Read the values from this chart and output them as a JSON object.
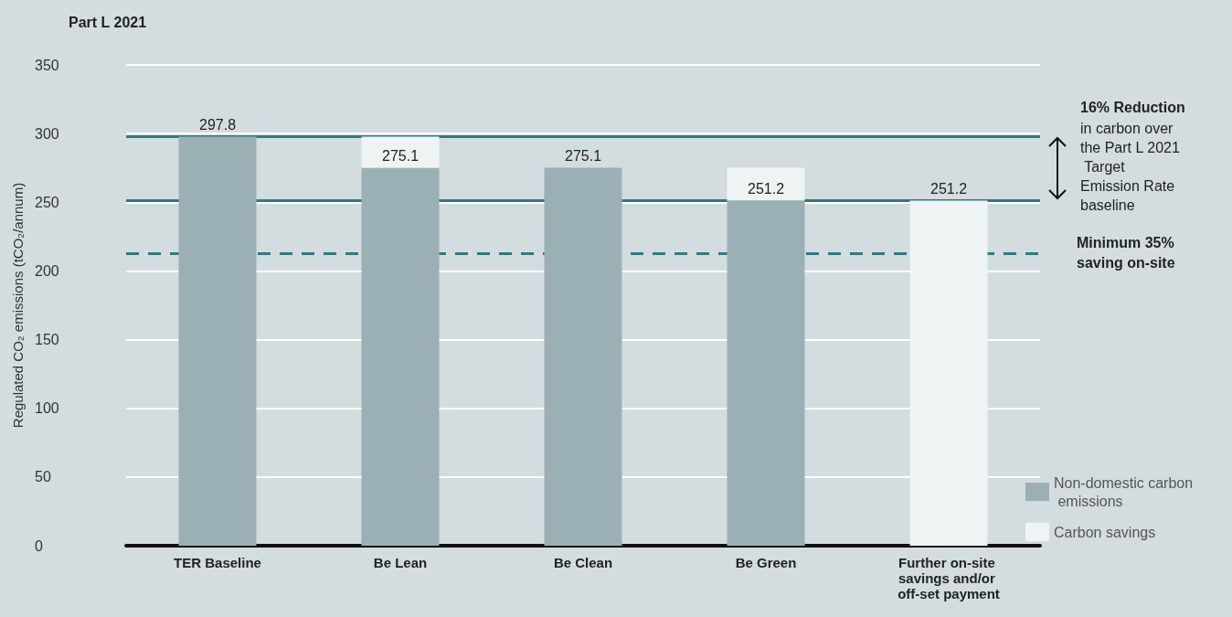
{
  "chart_data": {
    "type": "bar",
    "stacked": true,
    "title": "Part L 2021",
    "ylabel": "Regulated CO₂ emissions (tCO₂/annum)",
    "categories": [
      "TER Baseline",
      "Be Lean",
      "Be Clean",
      "Be Green",
      "Further on-site savings and/or off-set payment"
    ],
    "series": [
      {
        "name": "Non-domestic carbon emissions",
        "color": "#9ab0b5",
        "values": [
          297.8,
          275.1,
          275.1,
          251.2,
          0
        ],
        "value_labels": [
          "297.8",
          "275.1",
          "275.1",
          "251.2",
          null
        ]
      },
      {
        "name": "Carbon savings",
        "color": "#eef3f4",
        "values": [
          0,
          22.7,
          0,
          23.9,
          251.2
        ],
        "value_labels": [
          null,
          null,
          null,
          null,
          "251.2"
        ]
      }
    ],
    "ylim": [
      0,
      350
    ],
    "yticks": [
      0,
      50,
      100,
      150,
      200,
      250,
      300,
      350
    ],
    "grid": "y",
    "legend": "bottom right",
    "ref_lines": [
      {
        "axis": "y",
        "value": 297.8,
        "color": "#2e7b80",
        "line_style": "solid"
      },
      {
        "axis": "y",
        "value": 251.2,
        "color": "#2e7b80",
        "line_style": "solid"
      },
      {
        "axis": "y",
        "value": 213,
        "color": "#2e7b80",
        "line_style": "dashed",
        "label": "Minimum 35% saving on-site"
      }
    ],
    "annotations": [
      "16% Reduction",
      "in carbon over the Part L 2021 Target Emission Rate baseline"
    ]
  }
}
